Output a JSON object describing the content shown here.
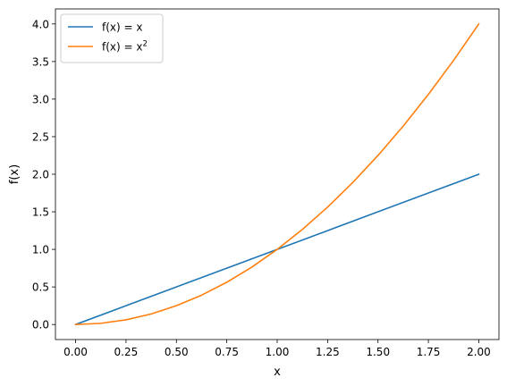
{
  "chart_data": {
    "type": "line",
    "xlabel": "x",
    "ylabel": "f(x)",
    "xlim": [
      -0.1,
      2.1
    ],
    "ylim": [
      -0.2,
      4.2
    ],
    "xticks": [
      0.0,
      0.25,
      0.5,
      0.75,
      1.0,
      1.25,
      1.5,
      1.75,
      2.0
    ],
    "xtick_labels": [
      "0.00",
      "0.25",
      "0.50",
      "0.75",
      "1.00",
      "1.25",
      "1.50",
      "1.75",
      "2.00"
    ],
    "yticks": [
      0.0,
      0.5,
      1.0,
      1.5,
      2.0,
      2.5,
      3.0,
      3.5,
      4.0
    ],
    "ytick_labels": [
      "0.0",
      "0.5",
      "1.0",
      "1.5",
      "2.0",
      "2.5",
      "3.0",
      "3.5",
      "4.0"
    ],
    "grid": false,
    "legend_position": "top-left",
    "series": [
      {
        "name": "f(x) = x",
        "name_base": "f(x) = x",
        "name_sup": "",
        "color": "#1f77b4",
        "x": [
          0.0,
          0.25,
          0.5,
          0.75,
          1.0,
          1.25,
          1.5,
          1.75,
          2.0
        ],
        "y": [
          0.0,
          0.25,
          0.5,
          0.75,
          1.0,
          1.25,
          1.5,
          1.75,
          2.0
        ]
      },
      {
        "name": "f(x) = x2",
        "name_base": "f(x) = x",
        "name_sup": "2",
        "color": "#ff7f0e",
        "x": [
          0.0,
          0.125,
          0.25,
          0.375,
          0.5,
          0.625,
          0.75,
          0.875,
          1.0,
          1.125,
          1.25,
          1.375,
          1.5,
          1.625,
          1.75,
          1.875,
          2.0
        ],
        "y": [
          0.0,
          0.015625,
          0.0625,
          0.140625,
          0.25,
          0.390625,
          0.5625,
          0.765625,
          1.0,
          1.265625,
          1.5625,
          1.890625,
          2.25,
          2.640625,
          3.0625,
          3.515625,
          4.0
        ]
      }
    ]
  }
}
